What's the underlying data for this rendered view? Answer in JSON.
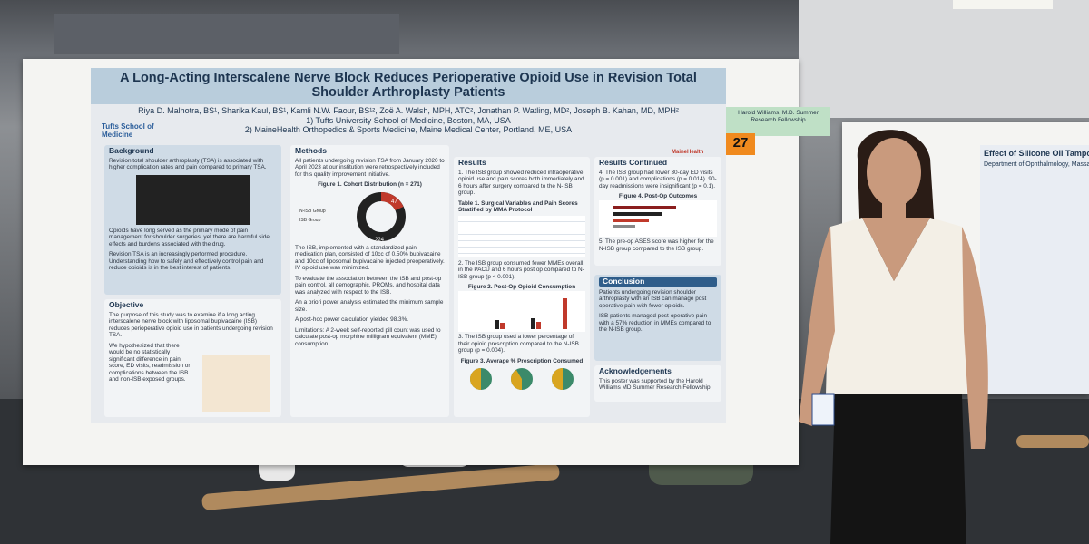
{
  "poster": {
    "title": "A Long-Acting Interscalene Nerve Block Reduces Perioperative Opioid Use in Revision Total Shoulder Arthroplasty Patients",
    "authors": "Riya D. Malhotra, BS¹, Sharika Kaul, BS¹, Kamli N.W. Faour, BS¹², Zoë A. Walsh, MPH, ATC², Jonathan P. Watling, MD², Joseph B. Kahan, MD, MPH²",
    "affiliations": [
      "1) Tufts University School of Medicine, Boston, MA, USA",
      "2) MaineHealth Orthopedics & Sports Medicine, Maine Medical Center, Portland, ME, USA"
    ],
    "logo_left": "Tufts School of Medicine",
    "logo_right": "MaineHealth",
    "background": {
      "heading": "Background",
      "items": [
        "Revision total shoulder arthroplasty (TSA) is associated with higher complication rates and pain compared to primary TSA.",
        "Opioids have long served as the primary mode of pain management for shoulder surgeries, yet there are harmful side effects and burdens associated with the drug.",
        "Revision TSA is an increasingly performed procedure. Understanding how to safely and effectively control pain and reduce opioids is in the best interest of patients."
      ]
    },
    "objective": {
      "heading": "Objective",
      "items": [
        "The purpose of this study was to examine if a long acting interscalene nerve block with liposomal bupivacaine (ISB) reduces perioperative opioid use in patients undergoing revision TSA.",
        "We hypothesized that there would be no statistically significant difference in pain score, ED visits, readmission or complications between the ISB and non-ISB exposed groups."
      ]
    },
    "methods": {
      "heading": "Methods",
      "items": [
        "All patients undergoing revision TSA from January 2020 to April 2023 at our institution were retrospectively included for this quality improvement initiative.",
        "The ISB, implemented with a standardized pain medication plan, consisted of 10cc of 0.50% bupivacaine and 10cc of liposomal bupivacaine injected preoperatively. IV opioid use was minimized.",
        "To evaluate the association between the ISB and post-op pain control, all demographic, PROMs, and hospital data was analyzed with respect to the ISB.",
        "An a priori power analysis estimated the minimum sample size.",
        "A post-hoc power calculation yielded 98.3%.",
        "Limitations: A 2-week self-reported pill count was used to calculate post-op morphine milligram equivalent (MME) consumption."
      ],
      "figure_caption": "Figure 1. Cohort Distribution (n = 271)",
      "legend": [
        "N-ISB Group",
        "ISB Group"
      ],
      "pie_labels": [
        "47",
        "224"
      ]
    },
    "results": {
      "heading": "Results",
      "items": [
        "1. The ISB group showed reduced intraoperative opioid use and pain scores both immediately and 6 hours after surgery compared to the N-ISB group.",
        "2. The ISB group consumed fewer MMEs overall, in the PACU and 6 hours post op compared to N-ISB group (p < 0.001).",
        "3. The ISB group used a lower percentage of their opioid prescription compared to the N-ISB group (p = 0.004)."
      ],
      "table_caption": "Table 1. Surgical Variables and Pain Scores Stratified by MMA Protocol",
      "figure2_caption": "Figure 2. Post-Op Opioid Consumption",
      "figure3_caption": "Figure 3. Average % Prescription Consumed"
    },
    "results_continued": {
      "heading": "Results Continued",
      "items": [
        "4. The ISB group had lower 30-day ED visits (p = 0.001) and complications (p = 0.014). 90-day readmissions were insignificant (p = 0.1).",
        "5. The pre-op ASES score was higher for the N-ISB group compared to the ISB group."
      ],
      "figure_caption": "Figure 4. Post-Op Outcomes"
    },
    "conclusion": {
      "heading": "Conclusion",
      "items": [
        "Patients undergoing revision shoulder arthroplasty with an ISB can manage post operative pain with fewer opioids.",
        "ISB patients managed post-operative pain with a 57% reduction in MMEs compared to the N-ISB group."
      ]
    },
    "acknowledgements": {
      "heading": "Acknowledgements",
      "text": "This poster was supported by the Harold Williams MD Summer Research Fellowship."
    }
  },
  "sign": "Harold Williams, M.D. Summer Research Fellowship",
  "board_number": "27",
  "neighbor_poster": {
    "title": "Effect of Silicone Oil Tampon... Following Multi-Stage V...",
    "affiliation": "Department of Ophthalmology, Massac..."
  }
}
